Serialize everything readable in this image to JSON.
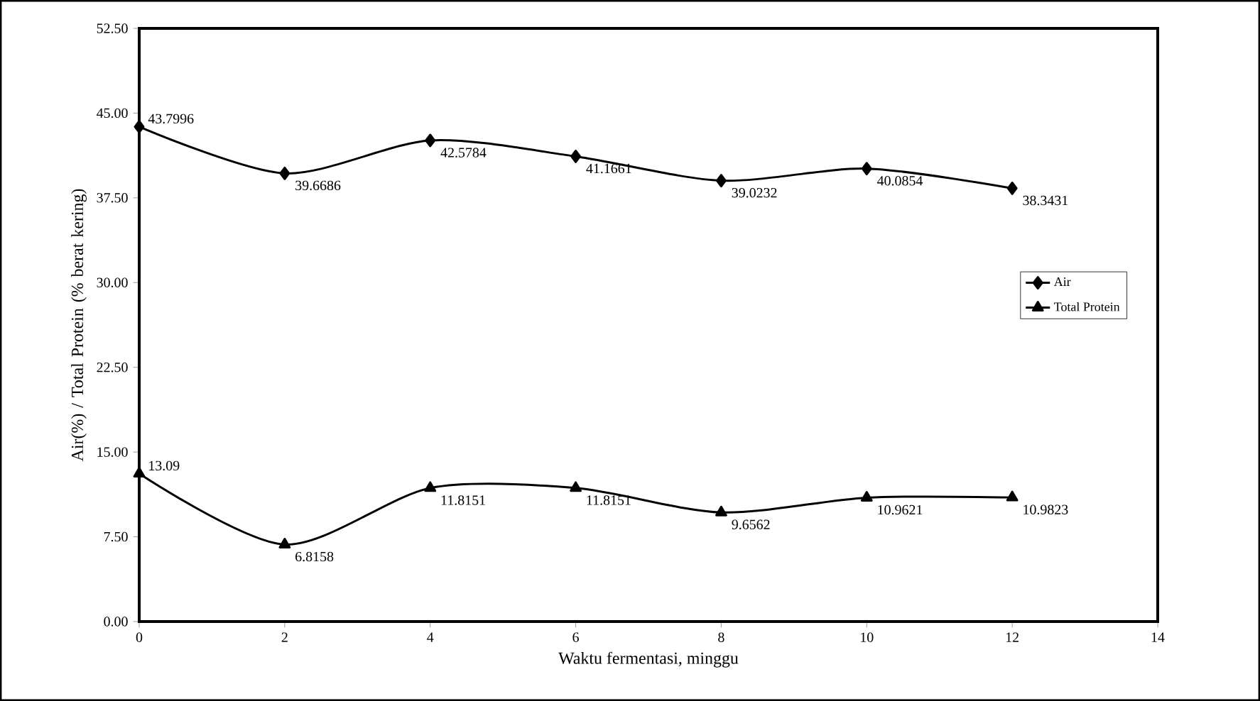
{
  "chart_data": {
    "type": "line",
    "xlabel": "Waktu fermentasi, minggu",
    "ylabel": "Air(%) / Total Protein (% berat kering)",
    "x": [
      0,
      2,
      4,
      6,
      8,
      10,
      12
    ],
    "series": [
      {
        "name": "Air",
        "color": "#000000",
        "marker": "diamond",
        "values": [
          43.7996,
          39.6686,
          42.5784,
          41.1661,
          39.0232,
          40.0854,
          38.3431
        ],
        "value_labels": [
          "43.7996",
          "39.6686",
          "42.5784",
          "41.1661",
          "39.0232",
          "40.0854",
          "38.3431"
        ]
      },
      {
        "name": "Total Protein",
        "color": "#000000",
        "marker": "triangle",
        "values": [
          13.09,
          6.8158,
          11.8151,
          11.8151,
          9.6562,
          10.9621,
          10.9823
        ],
        "value_labels": [
          "13.09",
          "6.8158",
          "11.8151",
          "11.8151",
          "9.6562",
          "10.9621",
          "10.9823"
        ]
      }
    ],
    "xlim": [
      0,
      14
    ],
    "xticks": [
      0,
      2,
      4,
      6,
      8,
      10,
      12,
      14
    ],
    "ylim": [
      0,
      52.5
    ],
    "yticks": [
      {
        "value": 0,
        "label": "0.00"
      },
      {
        "value": 7.5,
        "label": "7.50"
      },
      {
        "value": 15,
        "label": "15.00"
      },
      {
        "value": 22.5,
        "label": "22.50"
      },
      {
        "value": 30,
        "label": "30.00"
      },
      {
        "value": 37.5,
        "label": "37.50"
      },
      {
        "value": 45,
        "label": "45.00"
      },
      {
        "value": 52.5,
        "label": "52.50"
      }
    ],
    "grid": false,
    "legend": "right",
    "line_style": "solid"
  }
}
